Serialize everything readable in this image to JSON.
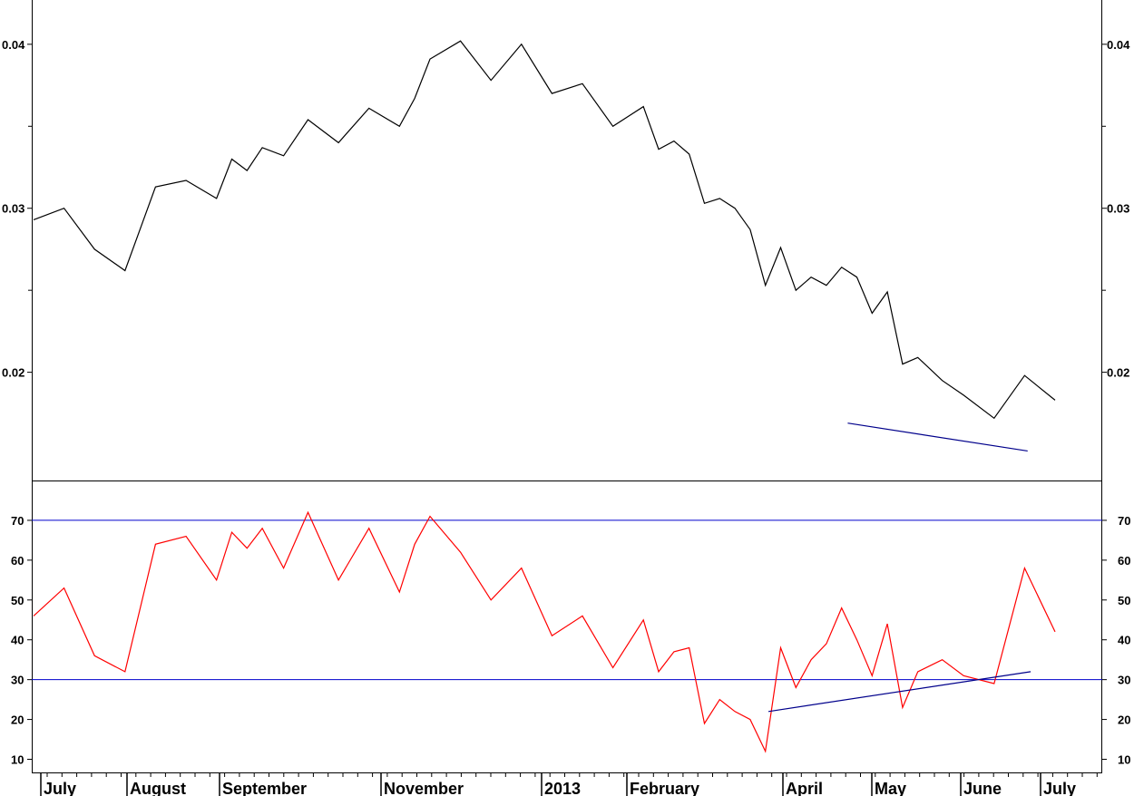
{
  "chart_data": [
    {
      "type": "line",
      "panel": "price",
      "y_ticks": [
        "0.02",
        "0.03",
        "0.04"
      ],
      "ylim": [
        0.0134,
        0.0427
      ],
      "grid": false,
      "line_color": "#000000",
      "trendline_color": "#00008b",
      "x": [
        0,
        10,
        20,
        30,
        40,
        50,
        60,
        65,
        70,
        75,
        82,
        90,
        100,
        110,
        120,
        125,
        130,
        140,
        150,
        160,
        170,
        180,
        190,
        200,
        205,
        210,
        215,
        220,
        225,
        230,
        235,
        240,
        245,
        250,
        255,
        260,
        265,
        270,
        275,
        280,
        285,
        290,
        298,
        305,
        315,
        325,
        335
      ],
      "series": [
        {
          "values": [
            0.0293,
            0.03,
            0.0275,
            0.0262,
            0.0313,
            0.0317,
            0.0306,
            0.033,
            0.0323,
            0.0337,
            0.0332,
            0.0354,
            0.034,
            0.0361,
            0.035,
            0.0367,
            0.0391,
            0.0402,
            0.0378,
            0.04,
            0.037,
            0.0376,
            0.035,
            0.0362,
            0.0336,
            0.0341,
            0.0333,
            0.0303,
            0.0306,
            0.03,
            0.0287,
            0.0253,
            0.0276,
            0.025,
            0.0258,
            0.0253,
            0.0264,
            0.0258,
            0.0236,
            0.0249,
            0.0205,
            0.0209,
            0.0195,
            0.0186,
            0.0172,
            0.0198,
            0.0183
          ]
        }
      ],
      "trendline": {
        "x": [
          267,
          326
        ],
        "y": [
          0.0169,
          0.0152
        ]
      }
    },
    {
      "type": "line",
      "panel": "rsi",
      "y_ticks": [
        "10",
        "20",
        "30",
        "40",
        "50",
        "60",
        "70"
      ],
      "ylim": [
        6.7,
        80
      ],
      "reference_lines": [
        30,
        70
      ],
      "reference_line_color": "#0000cc",
      "line_color": "#ff0000",
      "trendline_color": "#00008b",
      "x": [
        0,
        10,
        20,
        30,
        40,
        50,
        60,
        65,
        70,
        75,
        82,
        90,
        100,
        110,
        120,
        125,
        130,
        140,
        150,
        160,
        170,
        180,
        190,
        200,
        205,
        210,
        215,
        220,
        225,
        230,
        235,
        240,
        245,
        250,
        255,
        260,
        265,
        270,
        275,
        280,
        285,
        290,
        298,
        305,
        315,
        325,
        335
      ],
      "series": [
        {
          "values": [
            46,
            53,
            36,
            32,
            64,
            66,
            55,
            67,
            63,
            68,
            58,
            72,
            55,
            68,
            52,
            64,
            71,
            62,
            50,
            58,
            41,
            46,
            33,
            45,
            32,
            37,
            38,
            19,
            25,
            22,
            20,
            12,
            38,
            28,
            35,
            39,
            48,
            40,
            31,
            44,
            23,
            32,
            35,
            31,
            29,
            58,
            42
          ]
        }
      ],
      "trendline": {
        "x": [
          241,
          327
        ],
        "y": [
          22,
          32
        ]
      }
    }
  ],
  "x_axis": {
    "months": [
      "July",
      "August",
      "September",
      "November",
      "2013",
      "February",
      "April",
      "May",
      "June",
      "July"
    ]
  }
}
